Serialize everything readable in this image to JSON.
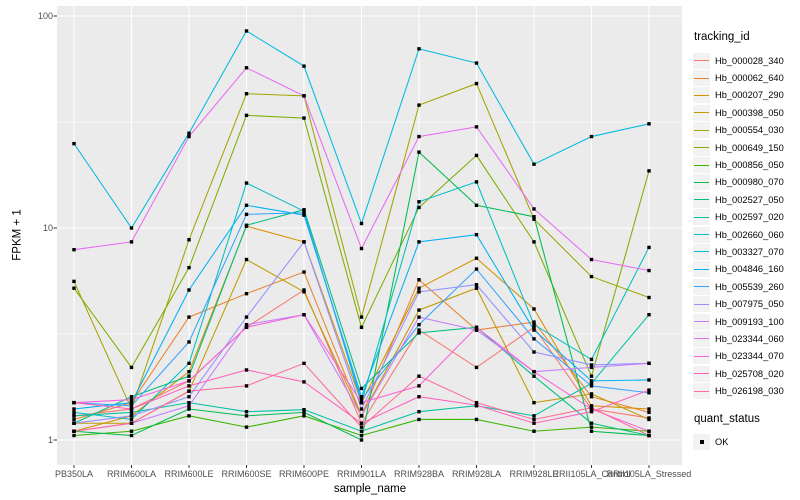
{
  "chart_data": {
    "type": "line",
    "title": "",
    "x_axis_label": "sample_name",
    "y_axis_label": "FPKM + 1",
    "y_scale": "log10",
    "y_ticks": [
      1,
      10,
      100
    ],
    "y_range": [
      1,
      100
    ],
    "grid": true,
    "legend_position": "right",
    "legend_title": "tracking_id",
    "quant_status_title": "quant_status",
    "quant_status_items": [
      "OK"
    ],
    "marker": {
      "shape": "square",
      "color": "#000000"
    },
    "panel_background": "#ebebeb",
    "grid_color": "#ffffff",
    "tick_label_color": "#4d4d4d",
    "categories": [
      "PB350LA",
      "RRIM600LA",
      "RRIM600LE",
      "RRIM600SE",
      "RRIM600PE",
      "RRIM901LA",
      "RRIM928BA",
      "RRIM928LA",
      "RRIM928LE",
      "RRII105LA_Control",
      "RRII105LA_Stressed"
    ],
    "series": [
      {
        "name": "Hb_000028_340",
        "color": "#F8766D",
        "values": [
          1.3,
          1.4,
          1.9,
          3.4,
          5.1,
          1.2,
          3.3,
          2.2,
          3.4,
          1.4,
          1.27
        ]
      },
      {
        "name": "Hb_000062_640",
        "color": "#EA8331",
        "values": [
          1.25,
          1.5,
          3.8,
          4.9,
          6.2,
          1.3,
          5.7,
          3.3,
          3.6,
          1.6,
          1.35
        ]
      },
      {
        "name": "Hb_000207_290",
        "color": "#D89000",
        "values": [
          1.1,
          1.3,
          2.1,
          10.2,
          8.6,
          1.5,
          5.2,
          7.2,
          4.15,
          1.45,
          1.4
        ]
      },
      {
        "name": "Hb_000398_050",
        "color": "#C09B00",
        "values": [
          1.2,
          1.2,
          1.7,
          7.1,
          5.0,
          1.3,
          4.1,
          5.2,
          1.5,
          1.65,
          1.25
        ]
      },
      {
        "name": "Hb_000554_030",
        "color": "#A3A500",
        "values": [
          5.6,
          1.4,
          8.8,
          43,
          42,
          3.8,
          38,
          48,
          11,
          5.9,
          4.7
        ]
      },
      {
        "name": "Hb_000649_150",
        "color": "#7CAE00",
        "values": [
          5.2,
          2.2,
          6.5,
          34,
          33,
          3.4,
          12.5,
          22,
          8.6,
          2.0,
          18.6
        ]
      },
      {
        "name": "Hb_000856_050",
        "color": "#39B600",
        "values": [
          1.05,
          1.1,
          1.3,
          1.15,
          1.3,
          1.05,
          1.25,
          1.25,
          1.1,
          1.15,
          1.1
        ]
      },
      {
        "name": "Hb_000980_070",
        "color": "#00BB4E",
        "values": [
          1.1,
          1.05,
          1.4,
          1.3,
          1.35,
          1.0,
          22.8,
          12.8,
          11.3,
          1.1,
          1.05
        ]
      },
      {
        "name": "Hb_002527_050",
        "color": "#00BF7D",
        "values": [
          1.2,
          1.6,
          2.0,
          10.3,
          12.2,
          1.75,
          3.2,
          3.4,
          2.0,
          1.2,
          1.05
        ]
      },
      {
        "name": "Hb_002597_020",
        "color": "#00C1A3",
        "values": [
          1.3,
          1.35,
          1.5,
          1.36,
          1.39,
          1.1,
          1.36,
          1.45,
          1.3,
          1.85,
          3.9
        ]
      },
      {
        "name": "Hb_002660_060",
        "color": "#00BFC4",
        "values": [
          1.35,
          1.25,
          2.3,
          16.3,
          12.0,
          1.5,
          13.3,
          16.5,
          3.5,
          2.4,
          8.1
        ]
      },
      {
        "name": "Hb_003327_070",
        "color": "#00BAE0",
        "values": [
          25,
          10,
          28,
          85,
          58,
          10.5,
          70,
          60,
          20,
          27,
          31
        ]
      },
      {
        "name": "Hb_004846_160",
        "color": "#00B0F6",
        "values": [
          1.4,
          1.5,
          5.1,
          12.8,
          11.5,
          1.6,
          8.6,
          9.3,
          3.3,
          1.9,
          1.92
        ]
      },
      {
        "name": "Hb_005539_260",
        "color": "#35A2FF",
        "values": [
          1.5,
          1.45,
          2.9,
          11.6,
          11.8,
          1.55,
          3.5,
          6.4,
          3.0,
          1.8,
          1.67
        ]
      },
      {
        "name": "Hb_007975_050",
        "color": "#9590FF",
        "values": [
          1.2,
          1.3,
          1.6,
          3.8,
          8.6,
          1.4,
          5.0,
          5.4,
          2.6,
          2.26,
          2.3
        ]
      },
      {
        "name": "Hb_009193_100",
        "color": "#C77CFF",
        "values": [
          1.1,
          1.2,
          1.45,
          3.5,
          3.9,
          1.3,
          3.8,
          3.3,
          2.1,
          2.2,
          2.3
        ]
      },
      {
        "name": "Hb_023344_060",
        "color": "#E76BF3",
        "values": [
          7.9,
          8.6,
          27,
          57,
          42,
          8.0,
          27,
          30,
          12.3,
          7.1,
          6.3
        ]
      },
      {
        "name": "Hb_023344_070",
        "color": "#FA62DB",
        "values": [
          1.5,
          1.55,
          1.9,
          3.4,
          3.9,
          1.5,
          1.8,
          3.4,
          2.1,
          1.4,
          1.1
        ]
      },
      {
        "name": "Hb_025708_020",
        "color": "#FF62BC",
        "values": [
          1.5,
          1.4,
          1.8,
          2.14,
          1.88,
          1.2,
          1.6,
          1.46,
          1.2,
          1.36,
          1.72
        ]
      },
      {
        "name": "Hb_026198_030",
        "color": "#FF6A98",
        "values": [
          1.1,
          1.2,
          1.7,
          1.8,
          2.3,
          1.15,
          2.0,
          1.5,
          1.25,
          1.42,
          1.05
        ]
      }
    ]
  }
}
